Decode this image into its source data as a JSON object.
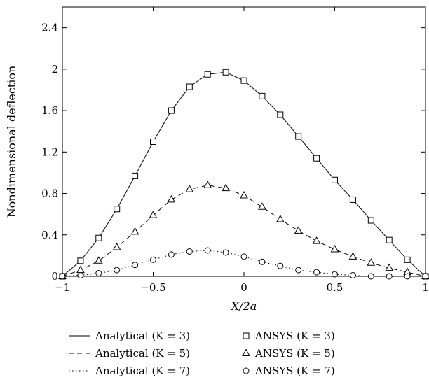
{
  "chart_data": {
    "type": "line",
    "xlabel": "X/2a",
    "ylabel": "Nondimensional deflection",
    "xlim": [
      -1,
      1
    ],
    "ylim": [
      0,
      2.6
    ],
    "x_ticks": [
      -1,
      -0.5,
      0,
      0.5,
      1
    ],
    "x_tick_labels": [
      "−1",
      "−0.5",
      "0",
      "0.5",
      "1"
    ],
    "y_ticks": [
      0,
      0.4,
      0.8,
      1.2,
      1.6,
      2,
      2.4
    ],
    "y_tick_labels": [
      "0",
      "0.4",
      "0.8",
      "1.2",
      "1.6",
      "2",
      "2.4"
    ],
    "grid": false,
    "legend_position": "bottom",
    "x_samples": [
      -1,
      -0.9,
      -0.8,
      -0.7,
      -0.6,
      -0.5,
      -0.4,
      -0.3,
      -0.2,
      -0.1,
      0,
      0.1,
      0.2,
      0.3,
      0.4,
      0.5,
      0.6,
      0.7,
      0.8,
      0.9,
      1
    ],
    "series": [
      {
        "name": "Analytical (K = 3)",
        "kind": "line",
        "dash": "solid",
        "values": [
          0,
          0.15,
          0.37,
          0.65,
          0.97,
          1.3,
          1.6,
          1.83,
          1.95,
          1.97,
          1.89,
          1.74,
          1.56,
          1.35,
          1.14,
          0.93,
          0.74,
          0.54,
          0.35,
          0.16,
          0
        ]
      },
      {
        "name": "Analytical (K = 5)",
        "kind": "line",
        "dash": "dashed",
        "values": [
          0,
          0.06,
          0.15,
          0.28,
          0.43,
          0.59,
          0.74,
          0.84,
          0.88,
          0.85,
          0.78,
          0.67,
          0.55,
          0.44,
          0.34,
          0.26,
          0.19,
          0.13,
          0.08,
          0.04,
          0
        ]
      },
      {
        "name": "Analytical (K = 7)",
        "kind": "line",
        "dash": "dotted",
        "values": [
          0,
          0.01,
          0.03,
          0.06,
          0.11,
          0.16,
          0.21,
          0.24,
          0.25,
          0.23,
          0.19,
          0.14,
          0.1,
          0.06,
          0.04,
          0.02,
          0.01,
          0,
          0,
          0,
          0
        ]
      },
      {
        "name": "ANSYS (K = 3)",
        "kind": "marker",
        "marker": "square",
        "values": [
          0,
          0.15,
          0.37,
          0.65,
          0.97,
          1.3,
          1.6,
          1.83,
          1.95,
          1.97,
          1.89,
          1.74,
          1.56,
          1.35,
          1.14,
          0.93,
          0.74,
          0.54,
          0.35,
          0.16,
          0
        ]
      },
      {
        "name": "ANSYS (K = 5)",
        "kind": "marker",
        "marker": "triangle",
        "values": [
          0,
          0.06,
          0.15,
          0.28,
          0.43,
          0.59,
          0.74,
          0.84,
          0.88,
          0.85,
          0.78,
          0.67,
          0.55,
          0.44,
          0.34,
          0.26,
          0.19,
          0.13,
          0.08,
          0.04,
          0
        ]
      },
      {
        "name": "ANSYS (K = 7)",
        "kind": "marker",
        "marker": "circle",
        "values": [
          0,
          0.01,
          0.03,
          0.06,
          0.11,
          0.16,
          0.21,
          0.24,
          0.25,
          0.23,
          0.19,
          0.14,
          0.1,
          0.06,
          0.04,
          0.02,
          0.01,
          0,
          0,
          0,
          0
        ]
      }
    ]
  }
}
